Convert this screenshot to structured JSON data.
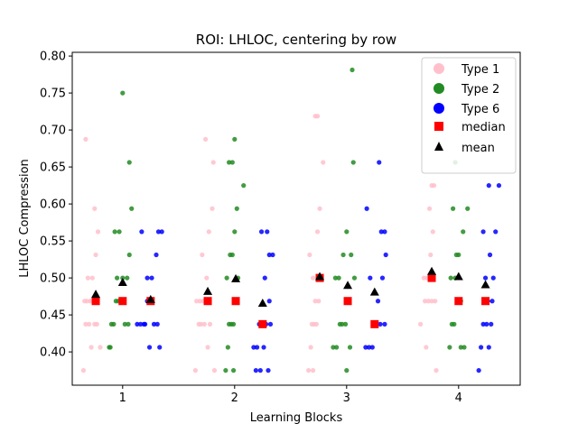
{
  "chart_data": {
    "type": "scatter",
    "title": "ROI: LHLOC, centering by row",
    "xlabel": "Learning Blocks",
    "ylabel": "LHLOC Compression",
    "xlim": [
      0.55,
      4.55
    ],
    "ylim": [
      0.355,
      0.805
    ],
    "xticks": [
      1,
      2,
      3,
      4
    ],
    "yticks": [
      0.4,
      0.45,
      0.5,
      0.55,
      0.6,
      0.65,
      0.7,
      0.75,
      0.8
    ],
    "ytick_labels": [
      "0.40",
      "0.45",
      "0.50",
      "0.55",
      "0.60",
      "0.65",
      "0.70",
      "0.75",
      "0.80"
    ],
    "legend_position": "top-right",
    "legend": [
      "Type 1",
      "Type 2",
      "Type 6",
      "median",
      "mean"
    ],
    "colors": {
      "type1": "#ffc0cb",
      "type2": "#228b22",
      "type6": "#0000ff",
      "median": "#ff0000",
      "mean": "#000000"
    },
    "series": [
      {
        "name": "Type 1",
        "color": "#ffc0cb",
        "points": [
          [
            0.65,
            0.375
          ],
          [
            0.67,
            0.4375
          ],
          [
            0.7,
            0.4375
          ],
          [
            0.72,
            0.40625
          ],
          [
            0.75,
            0.4375
          ],
          [
            0.77,
            0.4375
          ],
          [
            0.68,
            0.46875
          ],
          [
            0.71,
            0.46875
          ],
          [
            0.74,
            0.46875
          ],
          [
            0.66,
            0.46875
          ],
          [
            0.69,
            0.5
          ],
          [
            0.73,
            0.5
          ],
          [
            0.76,
            0.53125
          ],
          [
            0.78,
            0.5625
          ],
          [
            0.75,
            0.59375
          ],
          [
            0.67,
            0.6875
          ],
          [
            0.8,
            0.40625
          ],
          [
            0.72,
            0.46875
          ],
          [
            1.65,
            0.375
          ],
          [
            1.68,
            0.4375
          ],
          [
            1.7,
            0.4375
          ],
          [
            1.73,
            0.4375
          ],
          [
            1.76,
            0.40625
          ],
          [
            1.78,
            0.4375
          ],
          [
            1.66,
            0.46875
          ],
          [
            1.69,
            0.46875
          ],
          [
            1.72,
            0.46875
          ],
          [
            1.75,
            0.5
          ],
          [
            1.71,
            0.53125
          ],
          [
            1.77,
            0.5625
          ],
          [
            1.8,
            0.59375
          ],
          [
            1.74,
            0.6875
          ],
          [
            1.81,
            0.65625
          ],
          [
            1.82,
            0.375
          ],
          [
            2.66,
            0.375
          ],
          [
            2.69,
            0.4375
          ],
          [
            2.71,
            0.4375
          ],
          [
            2.73,
            0.4375
          ],
          [
            2.68,
            0.40625
          ],
          [
            2.75,
            0.46875
          ],
          [
            2.72,
            0.46875
          ],
          [
            2.77,
            0.5
          ],
          [
            2.7,
            0.5
          ],
          [
            2.74,
            0.5625
          ],
          [
            2.76,
            0.59375
          ],
          [
            2.72,
            0.71875
          ],
          [
            2.74,
            0.71875
          ],
          [
            2.79,
            0.65625
          ],
          [
            2.7,
            0.375
          ],
          [
            2.67,
            0.53125
          ],
          [
            3.66,
            0.4375
          ],
          [
            3.7,
            0.46875
          ],
          [
            3.73,
            0.46875
          ],
          [
            3.76,
            0.46875
          ],
          [
            3.79,
            0.46875
          ],
          [
            3.72,
            0.5
          ],
          [
            3.75,
            0.53125
          ],
          [
            3.77,
            0.5625
          ],
          [
            3.74,
            0.59375
          ],
          [
            3.78,
            0.625
          ],
          [
            3.76,
            0.625
          ],
          [
            3.8,
            0.375
          ],
          [
            3.71,
            0.40625
          ],
          [
            3.69,
            0.5
          ]
        ]
      },
      {
        "name": "Type 2",
        "color": "#228b22",
        "points": [
          [
            0.88,
            0.40625
          ],
          [
            0.9,
            0.4375
          ],
          [
            0.92,
            0.4375
          ],
          [
            0.94,
            0.46875
          ],
          [
            0.96,
            0.46875
          ],
          [
            0.98,
            0.46875
          ],
          [
            0.95,
            0.5
          ],
          [
            1.0,
            0.5
          ],
          [
            1.04,
            0.5
          ],
          [
            1.06,
            0.53125
          ],
          [
            0.93,
            0.5625
          ],
          [
            0.97,
            0.5625
          ],
          [
            1.02,
            0.4375
          ],
          [
            1.05,
            0.4375
          ],
          [
            1.08,
            0.59375
          ],
          [
            1.06,
            0.65625
          ],
          [
            1.0,
            0.75
          ],
          [
            0.89,
            0.40625
          ],
          [
            1.92,
            0.375
          ],
          [
            1.94,
            0.40625
          ],
          [
            1.95,
            0.4375
          ],
          [
            1.97,
            0.4375
          ],
          [
            1.99,
            0.4375
          ],
          [
            2.01,
            0.46875
          ],
          [
            1.93,
            0.5
          ],
          [
            1.96,
            0.53125
          ],
          [
            1.98,
            0.53125
          ],
          [
            2.0,
            0.5625
          ],
          [
            2.02,
            0.59375
          ],
          [
            1.95,
            0.65625
          ],
          [
            1.98,
            0.65625
          ],
          [
            2.0,
            0.6875
          ],
          [
            2.08,
            0.625
          ],
          [
            2.03,
            0.5
          ],
          [
            1.99,
            0.375
          ],
          [
            2.88,
            0.40625
          ],
          [
            2.91,
            0.40625
          ],
          [
            2.94,
            0.4375
          ],
          [
            2.96,
            0.4375
          ],
          [
            2.99,
            0.4375
          ],
          [
            3.02,
            0.46875
          ],
          [
            2.9,
            0.5
          ],
          [
            2.93,
            0.5
          ],
          [
            2.97,
            0.53125
          ],
          [
            3.04,
            0.53125
          ],
          [
            3.0,
            0.5625
          ],
          [
            3.06,
            0.65625
          ],
          [
            3.05,
            0.78125
          ],
          [
            3.0,
            0.375
          ],
          [
            3.07,
            0.5
          ],
          [
            3.03,
            0.40625
          ],
          [
            3.92,
            0.40625
          ],
          [
            3.94,
            0.4375
          ],
          [
            3.96,
            0.4375
          ],
          [
            3.99,
            0.46875
          ],
          [
            4.02,
            0.46875
          ],
          [
            3.93,
            0.5
          ],
          [
            3.97,
            0.5
          ],
          [
            4.0,
            0.53125
          ],
          [
            4.04,
            0.5625
          ],
          [
            3.95,
            0.59375
          ],
          [
            4.08,
            0.59375
          ],
          [
            3.97,
            0.65625
          ],
          [
            4.02,
            0.40625
          ],
          [
            4.05,
            0.40625
          ],
          [
            3.98,
            0.53125
          ]
        ]
      },
      {
        "name": "Type 6",
        "color": "#0000ff",
        "points": [
          [
            1.13,
            0.4375
          ],
          [
            1.16,
            0.4375
          ],
          [
            1.19,
            0.4375
          ],
          [
            1.22,
            0.46875
          ],
          [
            1.25,
            0.46875
          ],
          [
            1.28,
            0.4375
          ],
          [
            1.31,
            0.4375
          ],
          [
            1.33,
            0.40625
          ],
          [
            1.22,
            0.5
          ],
          [
            1.26,
            0.5
          ],
          [
            1.3,
            0.53125
          ],
          [
            1.17,
            0.5625
          ],
          [
            1.32,
            0.5625
          ],
          [
            1.35,
            0.5625
          ],
          [
            1.24,
            0.40625
          ],
          [
            1.2,
            0.4375
          ],
          [
            2.17,
            0.40625
          ],
          [
            2.2,
            0.40625
          ],
          [
            2.22,
            0.4375
          ],
          [
            2.25,
            0.4375
          ],
          [
            2.28,
            0.4375
          ],
          [
            2.31,
            0.46875
          ],
          [
            2.19,
            0.375
          ],
          [
            2.23,
            0.375
          ],
          [
            2.3,
            0.375
          ],
          [
            2.27,
            0.5
          ],
          [
            2.31,
            0.53125
          ],
          [
            2.34,
            0.53125
          ],
          [
            2.24,
            0.5625
          ],
          [
            2.29,
            0.5625
          ],
          [
            2.26,
            0.40625
          ],
          [
            2.32,
            0.4375
          ],
          [
            3.17,
            0.40625
          ],
          [
            3.2,
            0.40625
          ],
          [
            3.23,
            0.40625
          ],
          [
            3.26,
            0.4375
          ],
          [
            3.3,
            0.4375
          ],
          [
            3.34,
            0.4375
          ],
          [
            3.28,
            0.46875
          ],
          [
            3.21,
            0.5
          ],
          [
            3.32,
            0.5
          ],
          [
            3.18,
            0.59375
          ],
          [
            3.31,
            0.5625
          ],
          [
            3.34,
            0.5625
          ],
          [
            3.35,
            0.53125
          ],
          [
            3.29,
            0.65625
          ],
          [
            3.25,
            0.4375
          ]
        ],
        "points_b4": [
          [
            4.18,
            0.375
          ],
          [
            4.2,
            0.40625
          ],
          [
            4.22,
            0.4375
          ],
          [
            4.25,
            0.4375
          ],
          [
            4.27,
            0.40625
          ],
          [
            4.3,
            0.46875
          ],
          [
            4.24,
            0.5
          ],
          [
            4.31,
            0.5
          ],
          [
            4.28,
            0.53125
          ],
          [
            4.22,
            0.5625
          ],
          [
            4.33,
            0.5625
          ],
          [
            4.27,
            0.625
          ],
          [
            4.36,
            0.625
          ],
          [
            4.26,
            0.46875
          ],
          [
            4.29,
            0.4375
          ]
        ]
      }
    ],
    "median": {
      "name": "median",
      "color": "#ff0000",
      "points": [
        [
          0.76,
          0.46875
        ],
        [
          1.0,
          0.46875
        ],
        [
          1.25,
          0.46875
        ],
        [
          1.76,
          0.46875
        ],
        [
          2.01,
          0.46875
        ],
        [
          2.25,
          0.4375
        ],
        [
          2.76,
          0.5
        ],
        [
          3.01,
          0.46875
        ],
        [
          3.25,
          0.4375
        ],
        [
          3.76,
          0.5
        ],
        [
          4.0,
          0.46875
        ],
        [
          4.24,
          0.46875
        ]
      ]
    },
    "mean": {
      "name": "mean",
      "color": "#000000",
      "points": [
        [
          0.76,
          0.478
        ],
        [
          1.0,
          0.494
        ],
        [
          1.25,
          0.471
        ],
        [
          1.76,
          0.482
        ],
        [
          2.01,
          0.499
        ],
        [
          2.25,
          0.466
        ],
        [
          2.76,
          0.502
        ],
        [
          3.01,
          0.49
        ],
        [
          3.25,
          0.481
        ],
        [
          3.76,
          0.509
        ],
        [
          4.0,
          0.502
        ],
        [
          4.24,
          0.491
        ]
      ]
    }
  }
}
